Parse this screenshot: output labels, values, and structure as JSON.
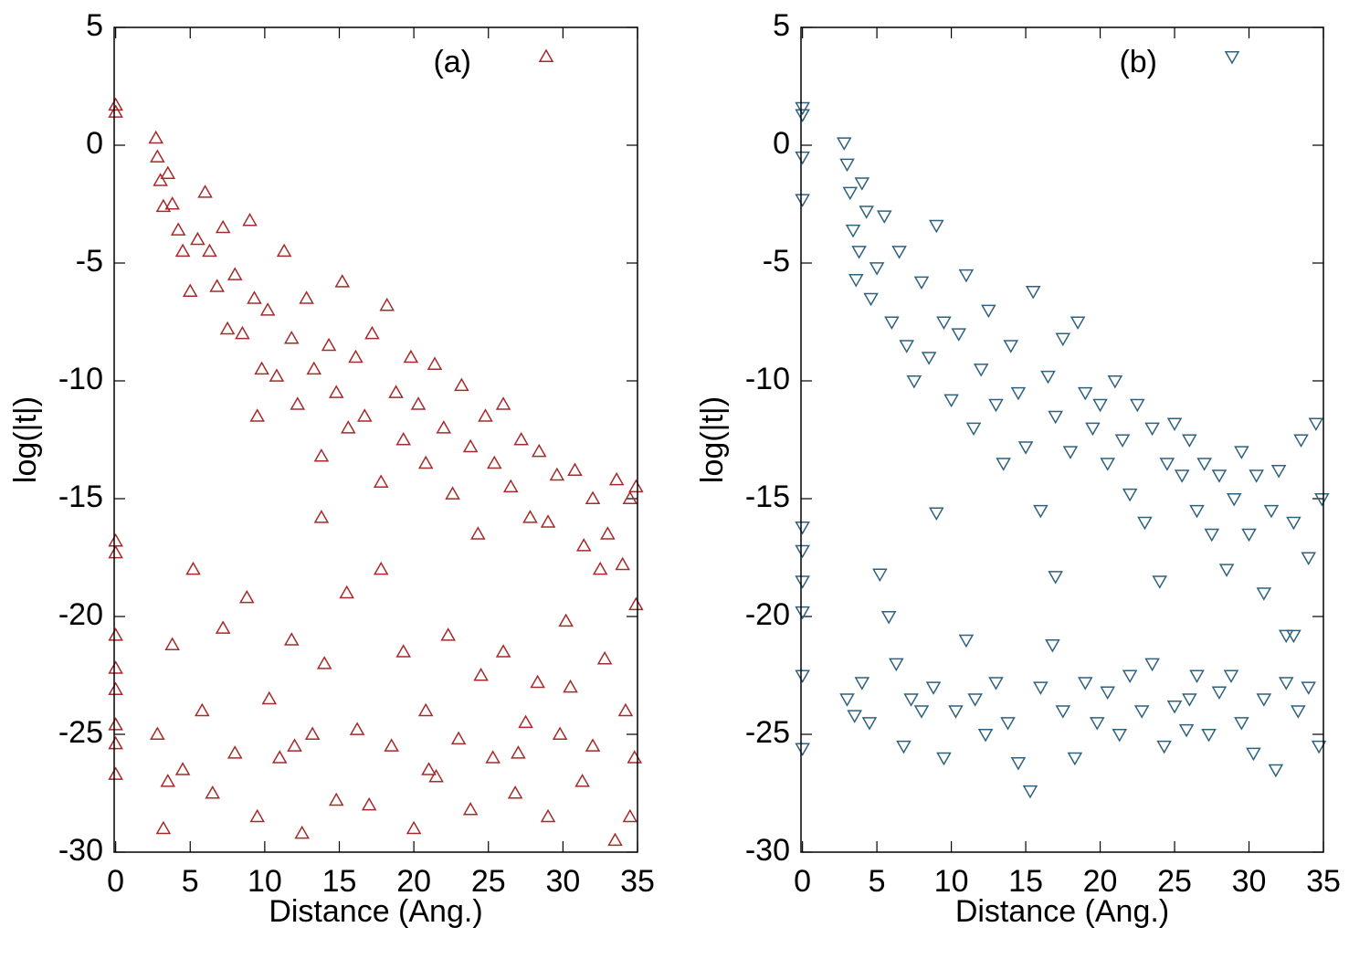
{
  "chart_data": [
    {
      "type": "scatter",
      "xlabel": "Distance (Ang.)",
      "ylabel": "log(|t|)",
      "xlim": [
        -0.1,
        35
      ],
      "ylim": [
        -30,
        5
      ],
      "xticks": [
        0,
        5,
        10,
        15,
        20,
        25,
        30,
        35
      ],
      "yticks": [
        -30,
        -25,
        -20,
        -15,
        -10,
        -5,
        0,
        5
      ],
      "legend": "top-right",
      "series": [
        {
          "name": "(a)",
          "color": "#a52a2a",
          "marker": "triangle-up",
          "x": [
            0,
            0,
            0,
            0,
            0,
            0,
            0,
            0,
            0,
            0,
            2.7,
            2.8,
            3.0,
            3.2,
            3.5,
            3.8,
            4.2,
            4.5,
            5.0,
            5.5,
            6.0,
            6.3,
            6.8,
            7.2,
            7.5,
            8.0,
            8.5,
            9.0,
            9.3,
            9.8,
            10.2,
            10.8,
            11.3,
            11.8,
            12.2,
            12.8,
            13.3,
            13.8,
            14.3,
            14.8,
            15.2,
            15.6,
            16.1,
            16.7,
            17.2,
            17.8,
            18.2,
            18.8,
            19.3,
            19.8,
            20.3,
            20.8,
            21.4,
            22.0,
            22.6,
            23.2,
            23.8,
            24.3,
            24.8,
            25.4,
            26.0,
            26.5,
            27.2,
            27.8,
            28.4,
            29.0,
            29.6,
            30.2,
            30.8,
            31.4,
            32.0,
            32.5,
            33.0,
            33.6,
            34.0,
            34.5,
            34.9,
            34.9,
            13.8,
            9.5,
            2.8,
            3.2,
            3.8,
            4.5,
            5.2,
            5.8,
            6.5,
            7.2,
            8.0,
            8.8,
            9.5,
            10.3,
            11.0,
            11.8,
            12.5,
            13.2,
            14.0,
            14.8,
            15.5,
            16.2,
            17.0,
            17.8,
            18.5,
            19.3,
            20.0,
            20.8,
            21.5,
            22.3,
            23.0,
            23.8,
            24.5,
            25.3,
            26.0,
            26.8,
            27.5,
            28.3,
            29.0,
            29.8,
            30.5,
            31.3,
            32.0,
            32.8,
            33.5,
            34.2,
            34.8,
            3.5,
            12.0,
            21.0,
            27.0,
            34.5
          ],
          "y": [
            1.7,
            1.4,
            -16.8,
            -17.3,
            -20.8,
            -22.2,
            -23.1,
            -24.6,
            -25.4,
            -26.7,
            0.3,
            -0.5,
            -1.5,
            -2.6,
            -1.2,
            -2.5,
            -3.6,
            -4.5,
            -6.2,
            -4.0,
            -2.0,
            -4.5,
            -6.0,
            -3.5,
            -7.8,
            -5.5,
            -8.0,
            -3.2,
            -6.5,
            -9.5,
            -7.0,
            -9.8,
            -4.5,
            -8.2,
            -11.0,
            -6.5,
            -9.5,
            -13.2,
            -8.5,
            -10.5,
            -5.8,
            -12.0,
            -9.0,
            -11.5,
            -8.0,
            -14.3,
            -6.8,
            -10.5,
            -12.5,
            -9.0,
            -11.0,
            -13.5,
            -9.3,
            -12.0,
            -14.8,
            -10.2,
            -12.8,
            -16.5,
            -11.5,
            -13.5,
            -11.0,
            -14.5,
            -12.5,
            -15.8,
            -13.0,
            -16.0,
            -14.0,
            -20.2,
            -13.8,
            -17.0,
            -15.0,
            -18.0,
            -16.5,
            -14.2,
            -17.8,
            -15.0,
            -19.5,
            -14.5,
            -15.8,
            -11.5,
            -25.0,
            -29.0,
            -21.2,
            -26.5,
            -18.0,
            -24.0,
            -27.5,
            -20.5,
            -25.8,
            -19.2,
            -28.5,
            -23.5,
            -26.0,
            -21.0,
            -29.2,
            -25.0,
            -22.0,
            -27.8,
            -19.0,
            -24.8,
            -28.0,
            -18.0,
            -25.5,
            -21.5,
            -29.0,
            -24.0,
            -26.8,
            -20.8,
            -25.2,
            -28.2,
            -22.5,
            -26.0,
            -21.5,
            -27.5,
            -24.5,
            -22.8,
            -28.5,
            -25.0,
            -23.0,
            -27.0,
            -25.5,
            -21.8,
            -29.5,
            -24.0,
            -26.0,
            -27.0,
            -25.5,
            -26.5,
            -25.8,
            -28.5
          ]
        }
      ]
    },
    {
      "type": "scatter",
      "xlabel": "Distance (Ang.)",
      "ylabel": "log(|t|)",
      "xlim": [
        -0.1,
        35
      ],
      "ylim": [
        -30,
        5
      ],
      "xticks": [
        0,
        5,
        10,
        15,
        20,
        25,
        30,
        35
      ],
      "yticks": [
        -30,
        -25,
        -20,
        -15,
        -10,
        -5,
        0,
        5
      ],
      "legend": "top-right",
      "series": [
        {
          "name": "(b)",
          "color": "#2f617d",
          "marker": "triangle-down",
          "x": [
            0,
            0,
            0,
            0,
            0,
            0,
            0,
            0,
            0,
            0,
            2.8,
            3.0,
            3.2,
            3.4,
            3.6,
            3.8,
            4.0,
            4.3,
            4.6,
            5.0,
            5.5,
            6.0,
            6.5,
            7.0,
            7.5,
            8.0,
            8.5,
            9.0,
            9.5,
            10.0,
            10.5,
            11.0,
            11.5,
            12.0,
            12.5,
            13.0,
            13.5,
            14.0,
            14.5,
            15.0,
            15.5,
            16.0,
            16.5,
            17.0,
            17.5,
            18.0,
            18.5,
            19.0,
            19.5,
            20.0,
            20.5,
            21.0,
            21.5,
            22.0,
            22.5,
            23.0,
            23.5,
            24.0,
            24.5,
            25.0,
            25.5,
            26.0,
            26.5,
            27.0,
            27.5,
            28.0,
            28.5,
            29.0,
            29.5,
            30.0,
            30.5,
            31.0,
            31.5,
            32.0,
            32.5,
            33.0,
            33.5,
            34.0,
            34.5,
            34.9,
            3.0,
            3.5,
            4.0,
            4.5,
            5.2,
            5.8,
            6.3,
            6.8,
            7.3,
            8.0,
            8.8,
            9.5,
            10.3,
            11.0,
            11.6,
            12.3,
            13.0,
            13.8,
            14.5,
            15.3,
            16.0,
            16.8,
            17.5,
            18.3,
            19.0,
            19.8,
            20.5,
            21.3,
            22.0,
            22.8,
            23.5,
            24.3,
            25.0,
            25.8,
            26.5,
            27.3,
            28.0,
            28.8,
            29.5,
            30.3,
            31.0,
            31.8,
            32.5,
            33.3,
            34.0,
            34.7,
            9.0,
            17.0,
            26.0,
            33.0
          ],
          "y": [
            1.6,
            1.3,
            -0.5,
            -2.3,
            -16.2,
            -17.2,
            -18.5,
            -19.8,
            -22.5,
            -25.6,
            0.1,
            -0.8,
            -2.0,
            -3.6,
            -5.7,
            -4.5,
            -1.6,
            -2.8,
            -6.5,
            -5.2,
            -3.0,
            -7.5,
            -4.5,
            -8.5,
            -10.0,
            -5.8,
            -9.0,
            -3.4,
            -7.5,
            -10.8,
            -8.0,
            -5.5,
            -12.0,
            -9.5,
            -7.0,
            -11.0,
            -13.5,
            -8.5,
            -10.5,
            -12.8,
            -6.2,
            -15.5,
            -9.8,
            -11.5,
            -8.2,
            -13.0,
            -7.5,
            -10.5,
            -12.0,
            -11.0,
            -13.5,
            -10.0,
            -12.5,
            -14.8,
            -11.0,
            -16.0,
            -12.0,
            -18.5,
            -13.5,
            -11.8,
            -14.0,
            -12.5,
            -15.5,
            -13.5,
            -16.5,
            -14.0,
            -18.0,
            -15.0,
            -13.0,
            -16.5,
            -14.0,
            -19.0,
            -15.5,
            -13.8,
            -20.8,
            -16.0,
            -12.5,
            -17.5,
            -11.8,
            -15.0,
            -23.5,
            -24.2,
            -22.8,
            -24.5,
            -18.2,
            -20.0,
            -22.0,
            -25.5,
            -23.5,
            -24.0,
            -23.0,
            -26.0,
            -24.0,
            -21.0,
            -23.5,
            -25.0,
            -22.8,
            -24.5,
            -26.2,
            -27.4,
            -23.0,
            -21.2,
            -24.0,
            -26.0,
            -22.8,
            -24.5,
            -23.2,
            -25.0,
            -22.5,
            -24.0,
            -22.0,
            -25.5,
            -23.8,
            -24.8,
            -22.5,
            -25.0,
            -23.2,
            -22.5,
            -24.5,
            -25.8,
            -23.5,
            -26.5,
            -22.8,
            -24.0,
            -23.0,
            -25.5,
            -15.6,
            -18.3,
            -23.5,
            -20.8
          ]
        }
      ]
    }
  ]
}
